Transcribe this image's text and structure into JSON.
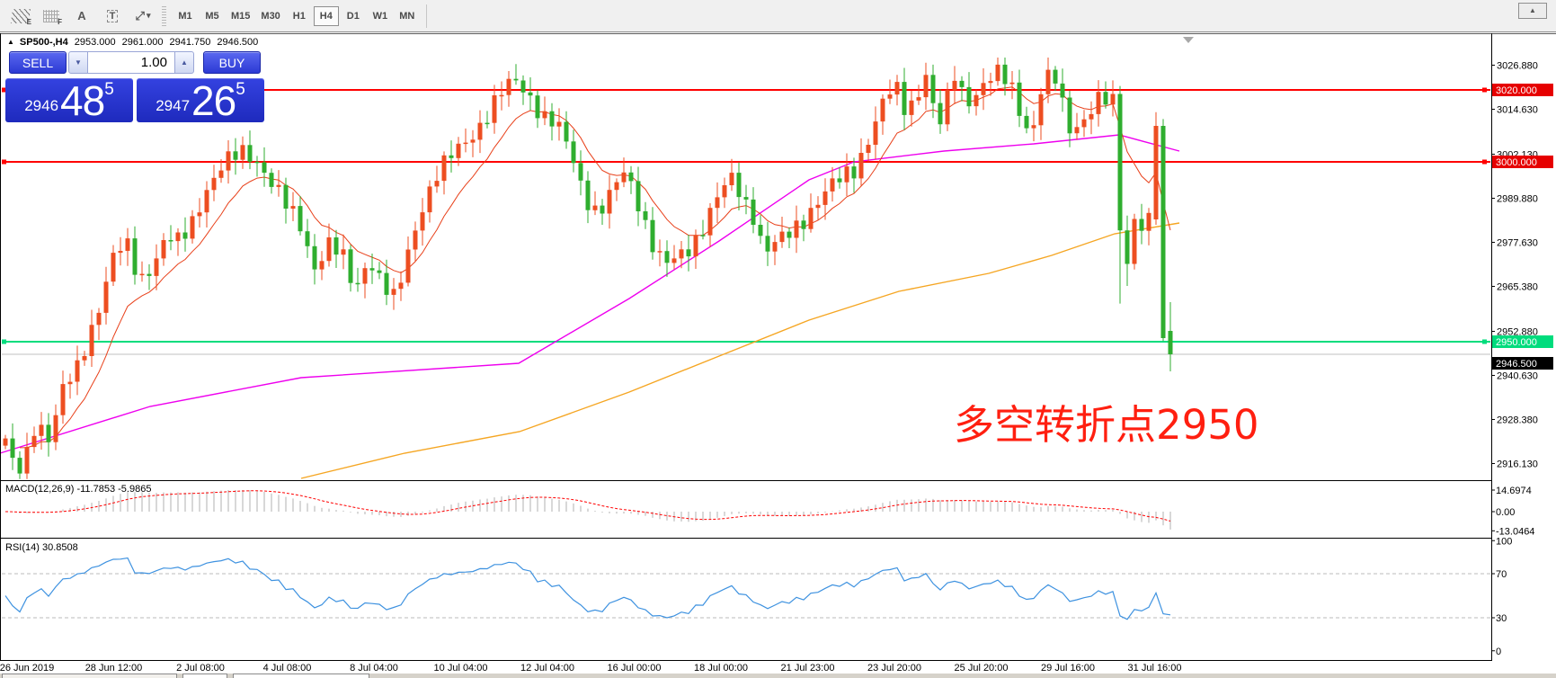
{
  "toolbar": {
    "icons": [
      {
        "name": "hatch-objects-icon",
        "glyph": "E"
      },
      {
        "name": "grid-objects-icon",
        "glyph": "F"
      },
      {
        "name": "text-label-icon",
        "glyph": "A"
      },
      {
        "name": "text-box-icon",
        "glyph": "T"
      },
      {
        "name": "arrow-objects-icon",
        "glyph": "⤢"
      },
      {
        "name": "dropdown-caret-icon",
        "glyph": "▾"
      }
    ],
    "timeframes": [
      {
        "label": "M1",
        "active": false
      },
      {
        "label": "M5",
        "active": false
      },
      {
        "label": "M15",
        "active": false
      },
      {
        "label": "M30",
        "active": false
      },
      {
        "label": "H1",
        "active": false
      },
      {
        "label": "H4",
        "active": true
      },
      {
        "label": "D1",
        "active": false
      },
      {
        "label": "W1",
        "active": false
      },
      {
        "label": "MN",
        "active": false
      }
    ],
    "restore_glyph": "▲"
  },
  "quote_header": {
    "marker": "▲",
    "symbol": "SP500-,H4",
    "open": "2953.000",
    "high": "2961.000",
    "low": "2941.750",
    "close": "2946.500"
  },
  "trade_panel": {
    "sell_label": "SELL",
    "buy_label": "BUY",
    "volume": "1.00",
    "spinner_up": "▲",
    "spinner_down": "▼",
    "sell_price_small": "2946",
    "sell_price_big": "48",
    "sell_price_sup": "5",
    "buy_price_small": "2947",
    "buy_price_big": "26",
    "buy_price_sup": "5"
  },
  "annotation": {
    "text": "多空转折点2950",
    "color": "#ff1f10"
  },
  "chart_data": {
    "type": "candlestick",
    "symbol": "SP500-",
    "timeframe": "H4",
    "last_bar": {
      "open": 2953.0,
      "high": 2961.0,
      "low": 2941.75,
      "close": 2946.5
    },
    "price_axis": {
      "ticks": [
        "3026.880",
        "3014.630",
        "3002.130",
        "2989.880",
        "2977.630",
        "2965.380",
        "2952.880",
        "2940.630",
        "2928.380",
        "2916.130"
      ],
      "tick_values": [
        3026.88,
        3014.63,
        3002.13,
        2989.88,
        2977.63,
        2965.38,
        2952.88,
        2940.63,
        2928.38,
        2916.13
      ]
    },
    "hlines": [
      {
        "price": 3020.0,
        "badge": "3020.000",
        "color": "#ff0000",
        "badge_bg": "#e60000"
      },
      {
        "price": 3000.0,
        "badge": "3000.000",
        "color": "#ff0000",
        "badge_bg": "#e60000"
      },
      {
        "price": 2950.0,
        "badge": "2950.000",
        "color": "#00dc7d",
        "badge_bg": "#00dc7d"
      }
    ],
    "current_price": {
      "value": 2946.5,
      "badge": "2946.500",
      "line_color": "#c0c0c0",
      "badge_bg": "#000000"
    },
    "x_labels": [
      "26 Jun 2019",
      "28 Jun 12:00",
      "2 Jul 08:00",
      "4 Jul 08:00",
      "8 Jul 04:00",
      "10 Jul 04:00",
      "12 Jul 04:00",
      "16 Jul 00:00",
      "18 Jul 00:00",
      "21 Jul 23:00",
      "23 Jul 20:00",
      "25 Jul 20:00",
      "29 Jul 16:00",
      "31 Jul 16:00"
    ],
    "close_waypoints": [
      [
        5,
        2924
      ],
      [
        15,
        2915
      ],
      [
        25,
        2913
      ],
      [
        40,
        2928
      ],
      [
        55,
        2924
      ],
      [
        70,
        2937
      ],
      [
        85,
        2941
      ],
      [
        100,
        2952
      ],
      [
        112,
        2962
      ],
      [
        125,
        2974
      ],
      [
        140,
        2977
      ],
      [
        155,
        2966
      ],
      [
        170,
        2972
      ],
      [
        185,
        2980
      ],
      [
        200,
        2977
      ],
      [
        215,
        2983
      ],
      [
        230,
        2993
      ],
      [
        245,
        2999
      ],
      [
        258,
        3001
      ],
      [
        272,
        3002
      ],
      [
        288,
        3000
      ],
      [
        305,
        2994
      ],
      [
        320,
        2987
      ],
      [
        335,
        2981
      ],
      [
        350,
        2971
      ],
      [
        365,
        2978
      ],
      [
        380,
        2974
      ],
      [
        395,
        2963
      ],
      [
        410,
        2974
      ],
      [
        425,
        2967
      ],
      [
        440,
        2961
      ],
      [
        455,
        2975
      ],
      [
        470,
        2988
      ],
      [
        485,
        2997
      ],
      [
        500,
        3001
      ],
      [
        515,
        3004
      ],
      [
        530,
        3009
      ],
      [
        545,
        3015
      ],
      [
        560,
        3020
      ],
      [
        575,
        3022
      ],
      [
        590,
        3018
      ],
      [
        605,
        3013
      ],
      [
        620,
        3010
      ],
      [
        635,
        3002
      ],
      [
        650,
        2991
      ],
      [
        665,
        2986
      ],
      [
        680,
        2991
      ],
      [
        695,
        2997
      ],
      [
        710,
        2989
      ],
      [
        725,
        2978
      ],
      [
        740,
        2971
      ],
      [
        755,
        2973
      ],
      [
        770,
        2977
      ],
      [
        785,
        2984
      ],
      [
        800,
        2991
      ],
      [
        815,
        2995
      ],
      [
        828,
        2989
      ],
      [
        840,
        2985
      ],
      [
        850,
        2975
      ],
      [
        862,
        2977
      ],
      [
        875,
        2979
      ],
      [
        890,
        2983
      ],
      [
        905,
        2988
      ],
      [
        920,
        2992
      ],
      [
        935,
        2995
      ],
      [
        950,
        2998
      ],
      [
        965,
        3006
      ],
      [
        980,
        3015
      ],
      [
        995,
        3021
      ],
      [
        1008,
        3014
      ],
      [
        1020,
        3019
      ],
      [
        1032,
        3026
      ],
      [
        1042,
        3008
      ],
      [
        1052,
        3015
      ],
      [
        1062,
        3024
      ],
      [
        1075,
        3017
      ],
      [
        1088,
        3020
      ],
      [
        1100,
        3023
      ],
      [
        1112,
        3024
      ],
      [
        1125,
        3021
      ],
      [
        1138,
        3012
      ],
      [
        1148,
        3008
      ],
      [
        1158,
        3020
      ],
      [
        1170,
        3024
      ],
      [
        1178,
        3021
      ],
      [
        1186,
        3010
      ],
      [
        1194,
        3009
      ],
      [
        1202,
        3012
      ],
      [
        1210,
        3013
      ],
      [
        1218,
        3017
      ],
      [
        1226,
        3017
      ],
      [
        1238,
        3016
      ],
      [
        1246,
        2982
      ],
      [
        1254,
        2972
      ],
      [
        1262,
        2985
      ],
      [
        1270,
        2983
      ],
      [
        1278,
        2984
      ]
    ],
    "wick_low_overrides": [
      [
        1246,
        2960.6
      ],
      [
        1254,
        2965.5
      ]
    ],
    "final_bars": [
      {
        "open": 2984.0,
        "high": 3013.8,
        "low": 2982.5,
        "close": 3010.0
      },
      {
        "open": 3010.0,
        "high": 3011.9,
        "low": 2950.2,
        "close": 2951.0
      },
      {
        "open": 2953.0,
        "high": 2961.0,
        "low": 2941.75,
        "close": 2946.5
      }
    ],
    "mid_ma_waypoints": [
      [
        0,
        2919
      ],
      [
        167,
        2932
      ],
      [
        335,
        2940
      ],
      [
        577,
        2944
      ],
      [
        700,
        2962
      ],
      [
        800,
        2978
      ],
      [
        900,
        2995
      ],
      [
        950,
        3000
      ],
      [
        1050,
        3003
      ],
      [
        1150,
        3005
      ],
      [
        1245,
        3007.5
      ],
      [
        1312,
        3003
      ]
    ],
    "slow_ma_waypoints": [
      [
        335,
        2912
      ],
      [
        450,
        2919
      ],
      [
        578,
        2925
      ],
      [
        700,
        2936
      ],
      [
        800,
        2946
      ],
      [
        900,
        2956
      ],
      [
        1000,
        2964
      ],
      [
        1100,
        2969
      ],
      [
        1170,
        2974
      ],
      [
        1240,
        2980
      ],
      [
        1312,
        2983
      ]
    ],
    "colors": {
      "up": "#ed4e21",
      "down": "#2fae2f",
      "fast_ma": "#e8401a",
      "mid_ma": "#ee00ee",
      "slow_ma": "#f5a623",
      "macd_hist": "#bdbdbd",
      "macd_signal": "#ff0000",
      "rsi": "#3e92e0",
      "level_dash": "#bbbbbb"
    },
    "macd": {
      "label": "MACD(12,26,9)",
      "value_main": "-11.7853",
      "value_signal": "-5.9865",
      "axis": [
        "14.6974",
        "0.00",
        "-13.0464"
      ],
      "axis_values": [
        14.6974,
        0,
        -13.0464
      ],
      "params": [
        12,
        26,
        9
      ]
    },
    "rsi": {
      "label": "RSI(14)",
      "value": "30.8508",
      "axis": [
        "100",
        "70",
        "30",
        "0"
      ],
      "axis_values": [
        100,
        70,
        30,
        0
      ],
      "levels": [
        70,
        30
      ],
      "period": 14
    }
  }
}
